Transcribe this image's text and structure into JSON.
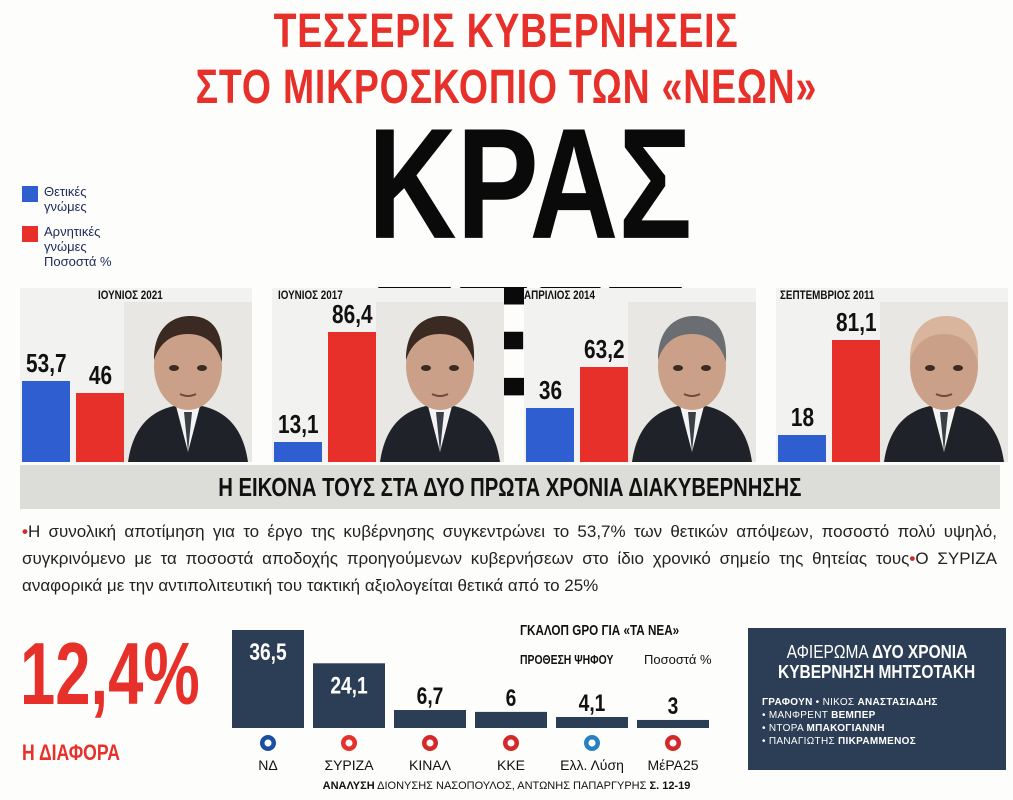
{
  "headline": {
    "line1": "ΤΕΣΣΕΡΙΣ ΚΥΒΕΡΝΗΣΕΙΣ",
    "line2": "ΣΤΟ ΜΙΚΡΟΣΚΟΠΙΟ ΤΩΝ «ΝΕΩΝ»",
    "main": "ΚΡΑΣ ΤΕΣΤ"
  },
  "legend": {
    "positive_line1": "Θετικές",
    "positive_line2": "γνώμες",
    "negative_line1": "Αρνητικές",
    "negative_line2": "γνώμες",
    "unit": "Ποσοστά %",
    "positive_color": "#2f5ed0",
    "negative_color": "#e8302a"
  },
  "approval_panels": [
    {
      "date": "ΙΟΥΝΙΟΣ 2021",
      "positive": "53,7",
      "negative": "46"
    },
    {
      "date": "ΙΟΥΝΙΟΣ 2017",
      "positive": "13,1",
      "negative": "86,4"
    },
    {
      "date": "ΑΠΡΙΛΙΟΣ 2014",
      "positive": "36",
      "negative": "63,2"
    },
    {
      "date": "ΣΕΠΤΕΜΒΡΙΟΣ 2011",
      "positive": "18",
      "negative": "81,1"
    }
  ],
  "subhead": "Η ΕΙΚΟΝΑ ΤΟΥΣ ΣΤΑ ΔΥΟ ΠΡΩΤΑ ΧΡΟΝΙΑ ΔΙΑΚΥΒΕΡΝΗΣΗΣ",
  "body": {
    "bullet": "•",
    "text1": "Η συνολική αποτίμηση για το έργο της κυβέρνησης συγκεντρώνει το 53,7% των θετικών απόψεων, ποσοστό πολύ υψηλό, συγκρινόμενο με τα ποσοστά αποδοχής προηγούμενων κυβερνήσεων στο ίδιο χρονικό σημείο της θητείας τους",
    "text2": "Ο ΣΥΡΙΖΑ αναφορικά με την αντιπολιτευτική του τακτική αξιολογείται θετικά από το 25%"
  },
  "difference": {
    "value": "12,4%",
    "label": "Η ΔΙΑΦΟΡΑ"
  },
  "poll": {
    "title": "ΓΚΑΛΟΠ GPO ΓΙΑ «ΤΑ ΝΕΑ»",
    "subtitle": "ΠΡΟΘΕΣΗ ΨΗΦΟΥ",
    "unit": "Ποσοστά %"
  },
  "chart_data": [
    {
      "type": "bar",
      "title": "ΓΚΑΛΟΠ GPO ΓΙΑ «ΤΑ ΝΕΑ»",
      "subtitle": "ΠΡΟΘΕΣΗ ΨΗΦΟΥ",
      "ylabel": "Ποσοστά %",
      "categories": [
        "ΝΔ",
        "ΣΥΡΙΖΑ",
        "ΚΙΝΑΛ",
        "ΚΚΕ",
        "Ελλ. Λύση",
        "ΜέΡΑ25"
      ],
      "values": [
        36.5,
        24.1,
        6.7,
        6,
        4.1,
        3
      ],
      "labels": [
        "36,5",
        "24,1",
        "6,7",
        "6",
        "4,1",
        "3"
      ],
      "ylim": [
        0,
        40
      ],
      "bar_color": "#2c3e55"
    },
    {
      "type": "bar",
      "ylabel": "Ποσοστά %",
      "categories": [
        "ΙΟΥΝΙΟΣ 2021",
        "ΙΟΥΝΙΟΣ 2017",
        "ΑΠΡΙΛΙΟΣ 2014",
        "ΣΕΠΤΕΜΒΡΙΟΣ 2011"
      ],
      "series": [
        {
          "name": "Θετικές γνώμες",
          "values": [
            53.7,
            13.1,
            36,
            18
          ]
        },
        {
          "name": "Αρνητικές γνώμες",
          "values": [
            46,
            86.4,
            63.2,
            81.1
          ]
        }
      ],
      "ylim": [
        0,
        100
      ]
    }
  ],
  "feature": {
    "title_light": "ΑΦΙΕΡΩΜΑ",
    "title_bold1": "ΔΥΟ ΧΡΟΝΙΑ",
    "title_bold2": "ΚΥΒΕΡΝΗΣΗ ΜΗΤΣΟΤΑΚΗ",
    "credits": [
      {
        "prefix": "ΓΡΑΦΟΥΝ",
        "first": "ΝΙΚΟΣ",
        "last": "ΑΝΑΣΤΑΣΙΑΔΗΣ"
      },
      {
        "prefix": "",
        "first": "ΜΑΝΦΡΕΝΤ",
        "last": "ΒΕΜΠΕΡ"
      },
      {
        "prefix": "",
        "first": "ΝΤΟΡΑ",
        "last": "ΜΠΑΚΟΓΙΑΝΝΗ"
      },
      {
        "prefix": "",
        "first": "ΠΑΝΑΓΙΩΤΗΣ",
        "last": "ΠΙΚΡΑΜΜΕΝΟΣ"
      }
    ]
  },
  "footer": {
    "label": "ΑΝΑΛΥΣΗ",
    "authors": "ΔΙΟΝΥΣΗΣ ΝΑΣΟΠΟΥΛΟΣ, ΑΝΤΩΝΗΣ ΠΑΠΑΡΓΥΡΗΣ",
    "pages": "Σ. 12-19"
  }
}
